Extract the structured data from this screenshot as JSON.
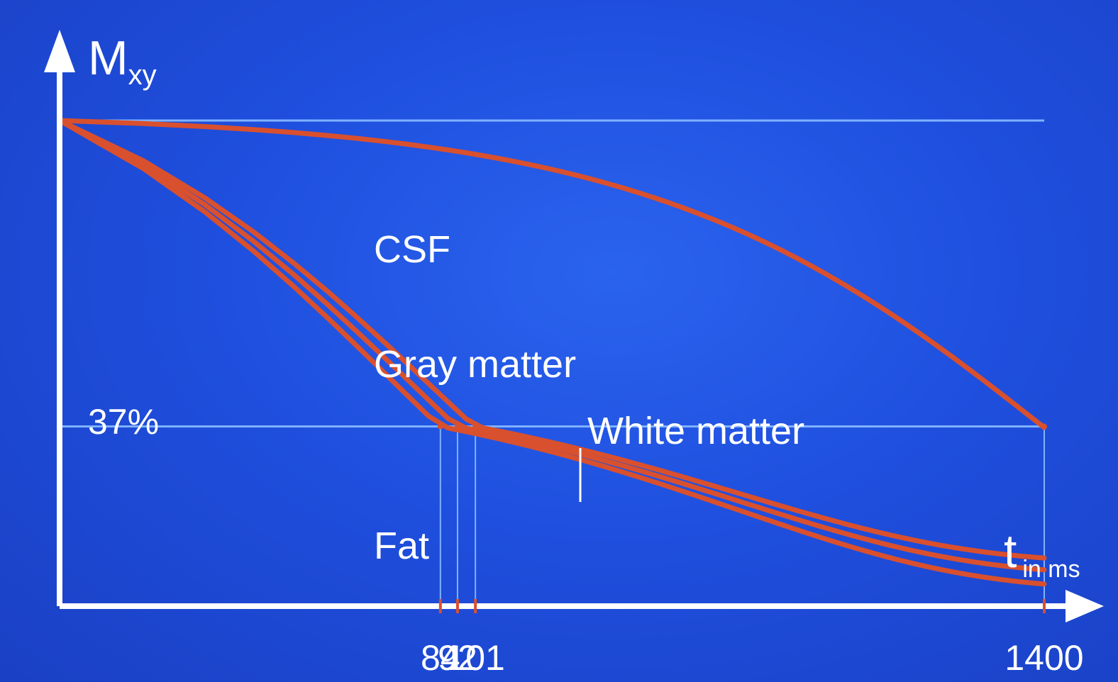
{
  "chart_data": {
    "type": "line",
    "ylabel_main": "M",
    "ylabel_sub": "xy",
    "xlabel_main": "t",
    "xlabel_sub": "in ms",
    "threshold_label": "37%",
    "threshold_value": 0.37,
    "xlim": [
      0,
      1400
    ],
    "ylim": [
      0,
      1
    ],
    "x_ticks": [
      "84",
      "92",
      "101",
      "1400"
    ],
    "t2_markers": [
      84,
      92,
      101
    ],
    "series": [
      {
        "name": "CSF",
        "t_at_37pct": 1400
      },
      {
        "name": "Gray matter",
        "t_at_37pct": 101
      },
      {
        "name": "White matter",
        "t_at_37pct": 92
      },
      {
        "name": "Fat",
        "t_at_37pct": 84
      }
    ]
  },
  "colors": {
    "background": "#1f4fde",
    "axis": "#ffffff",
    "guide": "#7fb2ff",
    "curve": "#d9502e"
  }
}
